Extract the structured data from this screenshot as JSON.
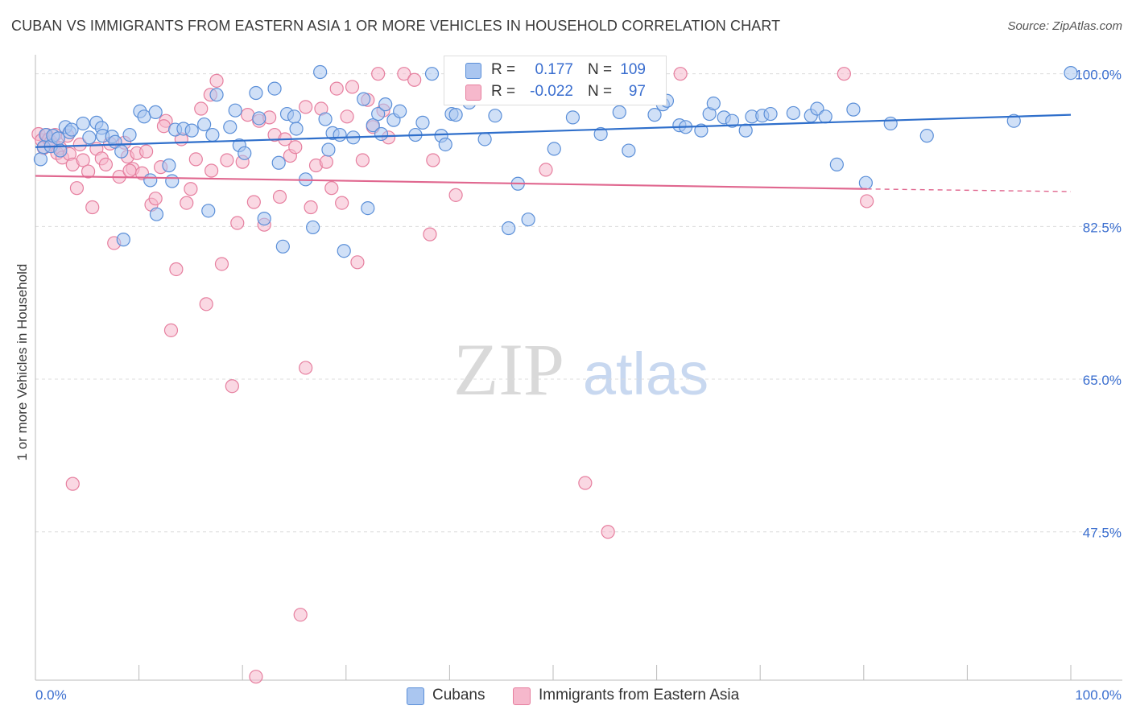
{
  "title": "CUBAN VS IMMIGRANTS FROM EASTERN ASIA 1 OR MORE VEHICLES IN HOUSEHOLD CORRELATION CHART",
  "source": "Source: ZipAtlas.com",
  "watermark": {
    "zip": "ZIP",
    "atlas": "atlas"
  },
  "colors": {
    "cubans_fill": "#aac6f0",
    "cubans_stroke": "#5b8fd8",
    "cubans_line": "#2f6fcb",
    "asia_fill": "#f6b8cc",
    "asia_stroke": "#e67f9f",
    "asia_line": "#e0678f",
    "tick_text": "#3a6ecf",
    "grid": "#dcdcdc"
  },
  "legend": {
    "rows": [
      {
        "swatch": "cubans",
        "r_label": "R =",
        "r_value": " 0.177",
        "n_label": "N =",
        "n_value": "109"
      },
      {
        "swatch": "asia",
        "r_label": "R =",
        "r_value": "-0.022",
        "n_label": "N =",
        "n_value": "97"
      }
    ]
  },
  "bottom_legend": [
    "Cubans",
    "Immigrants from Eastern Asia"
  ],
  "chart_data": {
    "type": "scatter",
    "title": "CUBAN VS IMMIGRANTS FROM EASTERN ASIA 1 OR MORE VEHICLES IN HOUSEHOLD CORRELATION CHART",
    "xlabel": "",
    "ylabel": "1 or more Vehicles in Household",
    "xlim": [
      0,
      100
    ],
    "ylim": [
      30.5,
      102
    ],
    "x_tick_labels": [
      "0.0%",
      "100.0%"
    ],
    "y_ticks": [
      47.5,
      65.0,
      82.5,
      100.0
    ],
    "y_tick_labels": [
      "47.5%",
      "65.0%",
      "82.5%",
      "100.0%"
    ],
    "grid": "horizontal dashed",
    "legend_position": "top-center",
    "series": [
      {
        "name": "Cubans",
        "r": 0.177,
        "n": 109,
        "trend": {
          "x0": 0,
          "y0": 91.6,
          "x1": 100,
          "y1": 95.3
        },
        "points": [
          [
            0.5,
            90.2
          ],
          [
            0.8,
            91.6
          ],
          [
            1.0,
            93.0
          ],
          [
            1.5,
            91.7
          ],
          [
            1.7,
            92.9
          ],
          [
            2.2,
            92.6
          ],
          [
            2.4,
            91.2
          ],
          [
            2.9,
            93.9
          ],
          [
            3.3,
            93.3
          ],
          [
            3.5,
            93.6
          ],
          [
            4.6,
            94.3
          ],
          [
            5.2,
            92.7
          ],
          [
            5.9,
            94.4
          ],
          [
            6.4,
            93.8
          ],
          [
            6.5,
            92.9
          ],
          [
            7.4,
            92.8
          ],
          [
            7.7,
            92.2
          ],
          [
            8.3,
            91.1
          ],
          [
            8.5,
            81.0
          ],
          [
            9.1,
            93.0
          ],
          [
            10.1,
            95.7
          ],
          [
            10.5,
            95.1
          ],
          [
            11.1,
            87.8
          ],
          [
            11.6,
            95.6
          ],
          [
            11.7,
            83.9
          ],
          [
            12.9,
            89.5
          ],
          [
            13.2,
            87.7
          ],
          [
            13.5,
            93.6
          ],
          [
            14.3,
            93.7
          ],
          [
            15.1,
            93.5
          ],
          [
            16.3,
            94.2
          ],
          [
            16.7,
            84.3
          ],
          [
            17.1,
            93.0
          ],
          [
            17.5,
            97.6
          ],
          [
            18.8,
            93.9
          ],
          [
            19.3,
            95.8
          ],
          [
            19.7,
            91.8
          ],
          [
            20.2,
            90.9
          ],
          [
            21.3,
            97.8
          ],
          [
            21.6,
            94.9
          ],
          [
            22.1,
            83.4
          ],
          [
            23.1,
            98.3
          ],
          [
            23.5,
            89.8
          ],
          [
            23.9,
            80.2
          ],
          [
            24.3,
            95.4
          ],
          [
            25.0,
            95.1
          ],
          [
            25.2,
            93.7
          ],
          [
            26.1,
            87.9
          ],
          [
            26.8,
            82.4
          ],
          [
            27.5,
            100.2
          ],
          [
            28.0,
            94.8
          ],
          [
            28.3,
            91.3
          ],
          [
            28.7,
            93.2
          ],
          [
            29.4,
            93.0
          ],
          [
            29.8,
            79.7
          ],
          [
            30.7,
            92.7
          ],
          [
            31.7,
            97.1
          ],
          [
            32.1,
            84.6
          ],
          [
            32.6,
            94.1
          ],
          [
            33.1,
            95.4
          ],
          [
            33.4,
            93.1
          ],
          [
            33.8,
            96.5
          ],
          [
            34.6,
            94.7
          ],
          [
            35.2,
            95.7
          ],
          [
            36.7,
            93.0
          ],
          [
            37.4,
            94.4
          ],
          [
            38.3,
            100.0
          ],
          [
            39.2,
            92.9
          ],
          [
            39.6,
            91.9
          ],
          [
            40.2,
            95.4
          ],
          [
            40.6,
            95.3
          ],
          [
            41.9,
            96.7
          ],
          [
            43.4,
            92.5
          ],
          [
            44.4,
            95.2
          ],
          [
            45.7,
            82.3
          ],
          [
            46.6,
            87.4
          ],
          [
            47.6,
            83.3
          ],
          [
            48.5,
            99.0
          ],
          [
            50.1,
            91.4
          ],
          [
            51.9,
            95.0
          ],
          [
            53.8,
            98.6
          ],
          [
            54.6,
            93.1
          ],
          [
            56.4,
            95.6
          ],
          [
            57.3,
            91.2
          ],
          [
            59.8,
            95.3
          ],
          [
            60.6,
            96.5
          ],
          [
            61.0,
            96.9
          ],
          [
            62.2,
            94.1
          ],
          [
            62.8,
            93.9
          ],
          [
            64.3,
            93.5
          ],
          [
            65.1,
            95.4
          ],
          [
            65.5,
            96.6
          ],
          [
            66.5,
            95.0
          ],
          [
            67.3,
            94.6
          ],
          [
            68.6,
            93.5
          ],
          [
            69.2,
            95.1
          ],
          [
            70.2,
            95.2
          ],
          [
            71.0,
            95.4
          ],
          [
            73.2,
            95.5
          ],
          [
            74.9,
            95.2
          ],
          [
            75.5,
            96.0
          ],
          [
            76.3,
            95.1
          ],
          [
            77.4,
            89.6
          ],
          [
            79.0,
            95.9
          ],
          [
            80.2,
            87.5
          ],
          [
            82.6,
            94.3
          ],
          [
            86.1,
            92.9
          ],
          [
            94.5,
            94.6
          ],
          [
            100.0,
            100.1
          ]
        ]
      },
      {
        "name": "Immigrants from Eastern Asia",
        "r": -0.022,
        "n": 97,
        "trend": {
          "x0": 0,
          "y0": 88.3,
          "x1": 80.3,
          "y1": 86.8,
          "dash_x1": 100,
          "dash_y1": 86.5
        },
        "points": [
          [
            0.3,
            93.1
          ],
          [
            0.6,
            92.4
          ],
          [
            0.8,
            91.5
          ],
          [
            1.1,
            93.0
          ],
          [
            1.3,
            92.5
          ],
          [
            1.5,
            92.2
          ],
          [
            1.8,
            91.8
          ],
          [
            2.1,
            90.9
          ],
          [
            2.4,
            91.5
          ],
          [
            2.6,
            90.4
          ],
          [
            3.1,
            92.9
          ],
          [
            3.3,
            90.8
          ],
          [
            3.6,
            89.6
          ],
          [
            4.0,
            86.9
          ],
          [
            4.3,
            91.9
          ],
          [
            4.6,
            90.1
          ],
          [
            5.1,
            88.8
          ],
          [
            5.5,
            84.7
          ],
          [
            5.9,
            91.4
          ],
          [
            6.4,
            90.3
          ],
          [
            6.8,
            89.6
          ],
          [
            7.2,
            92.0
          ],
          [
            7.6,
            80.6
          ],
          [
            8.1,
            88.2
          ],
          [
            8.6,
            92.1
          ],
          [
            8.9,
            90.5
          ],
          [
            9.4,
            89.1
          ],
          [
            9.8,
            90.9
          ],
          [
            10.3,
            88.6
          ],
          [
            10.7,
            91.1
          ],
          [
            11.2,
            85.0
          ],
          [
            11.6,
            85.7
          ],
          [
            12.1,
            89.3
          ],
          [
            12.6,
            94.6
          ],
          [
            13.1,
            70.6
          ],
          [
            13.6,
            77.6
          ],
          [
            14.1,
            92.5
          ],
          [
            14.6,
            85.2
          ],
          [
            15.0,
            86.8
          ],
          [
            15.5,
            90.2
          ],
          [
            16.0,
            96.0
          ],
          [
            16.5,
            73.6
          ],
          [
            17.0,
            88.9
          ],
          [
            17.5,
            99.2
          ],
          [
            18.0,
            78.2
          ],
          [
            18.5,
            90.1
          ],
          [
            19.0,
            64.2
          ],
          [
            19.5,
            82.9
          ],
          [
            20.0,
            89.9
          ],
          [
            20.5,
            95.3
          ],
          [
            21.1,
            85.3
          ],
          [
            21.6,
            94.6
          ],
          [
            22.1,
            82.7
          ],
          [
            22.6,
            95.0
          ],
          [
            23.1,
            93.0
          ],
          [
            23.6,
            85.9
          ],
          [
            24.1,
            92.5
          ],
          [
            24.6,
            90.6
          ],
          [
            25.1,
            91.6
          ],
          [
            25.6,
            38.0
          ],
          [
            26.1,
            96.2
          ],
          [
            26.6,
            84.7
          ],
          [
            27.1,
            89.5
          ],
          [
            27.6,
            96.0
          ],
          [
            28.1,
            89.9
          ],
          [
            28.6,
            86.9
          ],
          [
            29.1,
            98.3
          ],
          [
            29.6,
            85.2
          ],
          [
            30.1,
            95.1
          ],
          [
            30.6,
            98.5
          ],
          [
            31.1,
            78.4
          ],
          [
            31.6,
            90.1
          ],
          [
            32.1,
            97.0
          ],
          [
            32.6,
            93.9
          ],
          [
            33.1,
            100.0
          ],
          [
            33.6,
            95.8
          ],
          [
            34.1,
            92.7
          ],
          [
            35.6,
            100.0
          ],
          [
            36.6,
            99.3
          ],
          [
            38.1,
            81.6
          ],
          [
            38.4,
            90.1
          ],
          [
            40.6,
            86.1
          ],
          [
            44.1,
            100.0
          ],
          [
            48.4,
            100.3
          ],
          [
            49.3,
            89.0
          ],
          [
            53.1,
            53.1
          ],
          [
            55.3,
            47.5
          ],
          [
            62.3,
            100.0
          ],
          [
            78.1,
            100.0
          ],
          [
            80.3,
            85.4
          ],
          [
            3.6,
            53.0
          ],
          [
            21.3,
            30.9
          ],
          [
            26.1,
            66.3
          ],
          [
            12.4,
            94.0
          ],
          [
            16.9,
            97.6
          ],
          [
            1.9,
            93.0
          ],
          [
            9.1,
            88.9
          ]
        ]
      }
    ]
  }
}
